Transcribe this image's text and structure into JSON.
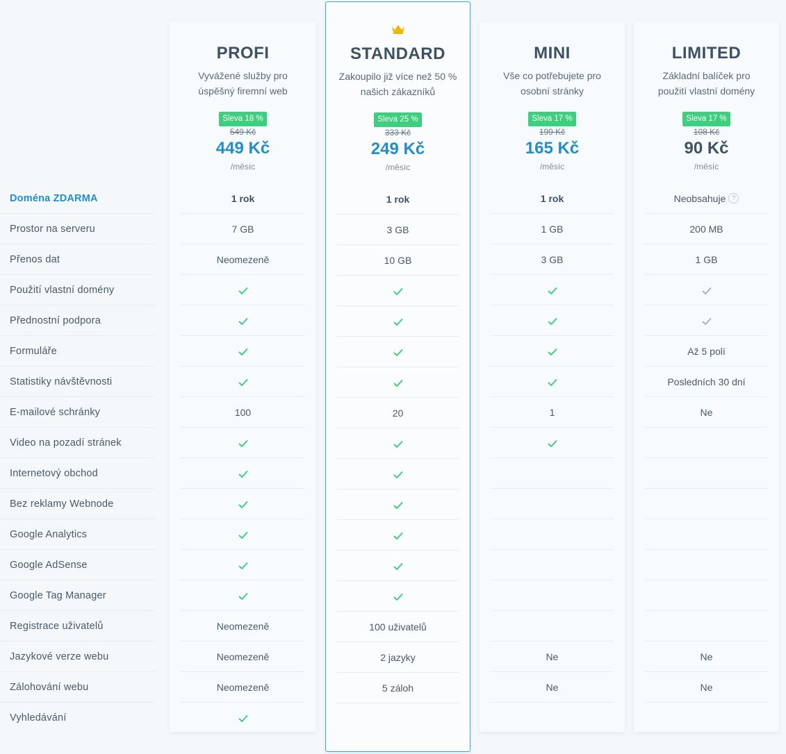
{
  "features": [
    "Doména ZDARMA",
    "Prostor na serveru",
    "Přenos dat",
    "Použití vlastní domény",
    "Přednostní podpora",
    "Formuláře",
    "Statistiky návštěvnosti",
    "E-mailové schránky",
    "Video na pozadí stránek",
    "Internetový obchod",
    "Bez reklamy Webnode",
    "Google Analytics",
    "Google AdSense",
    "Google Tag Manager",
    "Registrace uživatelů",
    "Jazykové verze webu",
    "Zálohování webu",
    "Vyhledávání"
  ],
  "plans": [
    {
      "name": "PROFI",
      "desc1": "Vyvážené služby pro",
      "desc2": "úspěšný firemní web",
      "badge": "Sleva 18 %",
      "old_price": "549 Kč",
      "price": "449 Kč",
      "period": "/měsíc",
      "cells": [
        "1 rok",
        "7 GB",
        "Neomezeně",
        "✓",
        "✓",
        "✓",
        "✓",
        "100",
        "✓",
        "✓",
        "✓",
        "✓",
        "✓",
        "✓",
        "Neomezeně",
        "Neomezeně",
        "Neomezeně",
        "✓"
      ]
    },
    {
      "name": "STANDARD",
      "desc1": "Zakoupilo již více než 50 %",
      "desc2": "našich zákazníků",
      "badge": "Sleva 25 %",
      "old_price": "333 Kč",
      "price": "249 Kč",
      "period": "/měsíc",
      "icon": "crown-icon",
      "cells": [
        "1 rok",
        "3 GB",
        "10 GB",
        "✓",
        "✓",
        "✓",
        "✓",
        "20",
        "✓",
        "✓",
        "✓",
        "✓",
        "✓",
        "✓",
        "100 uživatelů",
        "2 jazyky",
        "5 záloh",
        ""
      ]
    },
    {
      "name": "MINI",
      "desc1": "Vše co potřebujete pro",
      "desc2": "osobní stránky",
      "badge": "Sleva 17 %",
      "old_price": "199 Kč",
      "price": "165 Kč",
      "period": "/měsíc",
      "cells": [
        "1 rok",
        "1 GB",
        "3 GB",
        "✓",
        "✓",
        "✓",
        "✓",
        "1",
        "✓",
        "",
        "",
        "",
        "",
        "",
        "",
        "Ne",
        "Ne",
        ""
      ]
    },
    {
      "name": "LIMITED",
      "desc1": "Základní balíček pro",
      "desc2": "použití vlastní domény",
      "badge": "Sleva 17 %",
      "old_price": "108 Kč",
      "price": "90 Kč",
      "period": "/měsíc",
      "cells": [
        "Neobsahuje",
        "200 MB",
        "1 GB",
        "✓gray",
        "✓gray",
        "Až 5 polí",
        "Posledních 30 dní",
        "Ne",
        "",
        "",
        "",
        "",
        "",
        "",
        "",
        "Ne",
        "Ne",
        ""
      ]
    }
  ],
  "colors": {
    "accent": "#1f8ec9",
    "badge": "#3ecf7e",
    "check": "#3ecf7e",
    "check_gray": "#a8b4bf",
    "crown": "#f2b705",
    "highlight_border": "#3aa6d8"
  }
}
